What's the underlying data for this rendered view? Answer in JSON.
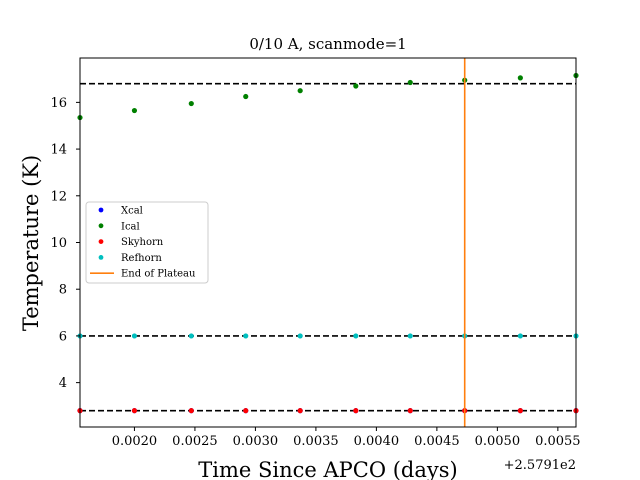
{
  "chart_data": {
    "type": "scatter",
    "title": "0/10 A, scanmode=1",
    "xlabel": "Time Since APCO (days)",
    "ylabel": "Temperature (K)",
    "x_offset_label": "+2.5791e2",
    "xlim": [
      0.00155,
      0.00565
    ],
    "ylim": [
      2.1,
      17.9
    ],
    "xticks": [
      0.002,
      0.0025,
      0.003,
      0.0035,
      0.004,
      0.0045,
      0.005,
      0.0055
    ],
    "xtick_labels": [
      "0.0020",
      "0.0025",
      "0.0030",
      "0.0035",
      "0.0040",
      "0.0045",
      "0.0050",
      "0.0055"
    ],
    "yticks": [
      4,
      6,
      8,
      10,
      12,
      14,
      16
    ],
    "ytick_labels": [
      "4",
      "6",
      "8",
      "10",
      "12",
      "14",
      "16"
    ],
    "grid": false,
    "legend_position": "center-left",
    "x": [
      0.00155,
      0.002,
      0.00247,
      0.00292,
      0.00337,
      0.00383,
      0.00428,
      0.00473,
      0.00519,
      0.00565
    ],
    "series": [
      {
        "name": "Xcal",
        "color": "#0000ff",
        "values": [
          2.8,
          2.8,
          2.8,
          2.8,
          2.8,
          2.8,
          2.8,
          2.8,
          2.8,
          2.8
        ]
      },
      {
        "name": "Ical",
        "color": "#008000",
        "values": [
          15.35,
          15.65,
          15.95,
          16.25,
          16.5,
          16.7,
          16.85,
          16.95,
          17.05,
          17.15
        ]
      },
      {
        "name": "Skyhorn",
        "color": "#ff0000",
        "values": [
          2.8,
          2.8,
          2.8,
          2.8,
          2.8,
          2.8,
          2.8,
          2.8,
          2.8,
          2.8
        ]
      },
      {
        "name": "Refhorn",
        "color": "#00bfbf",
        "values": [
          6.0,
          6.0,
          6.0,
          6.0,
          6.0,
          6.0,
          6.0,
          6.0,
          6.0,
          6.0
        ]
      }
    ],
    "hlines": [
      2.8,
      6.0,
      16.8
    ],
    "vline": {
      "name": "End of Plateau",
      "x": 0.00473,
      "color": "#ff7f0e"
    }
  }
}
